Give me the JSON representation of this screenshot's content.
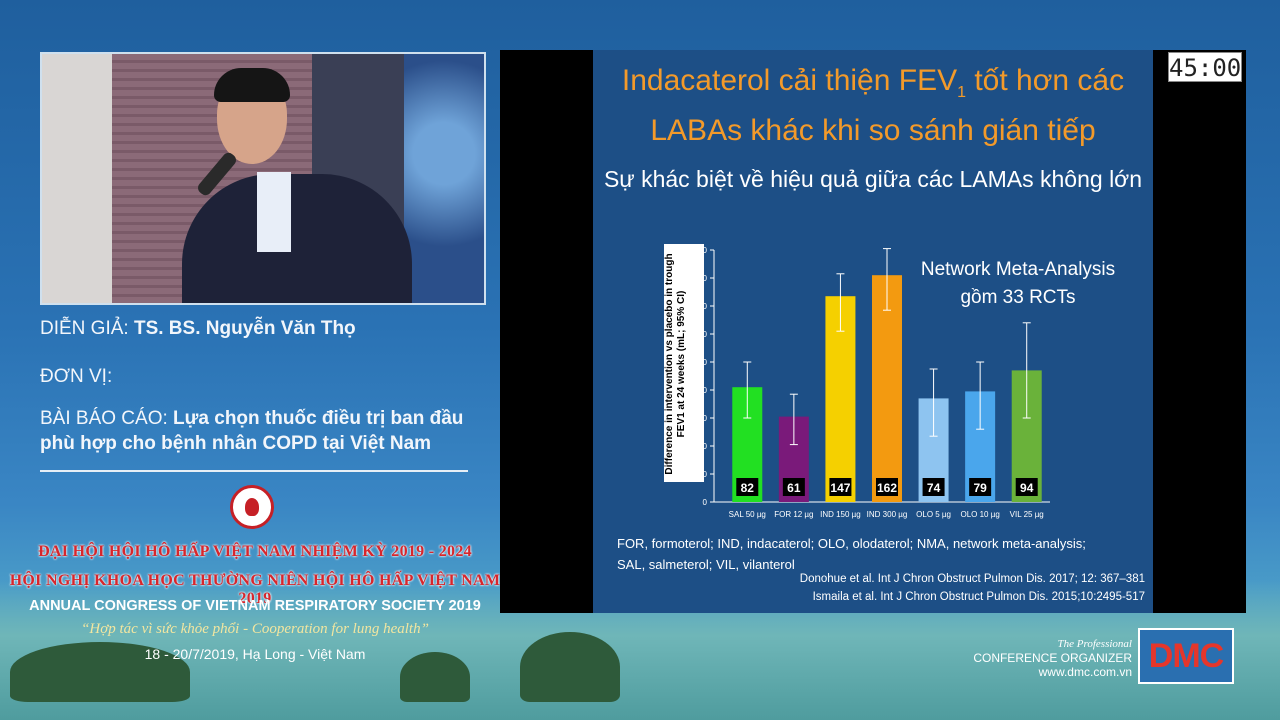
{
  "speaker": {
    "label": "DIỄN GIẢ:",
    "name": "TS. BS. Nguyễn Văn Thọ",
    "unit_label": "ĐƠN VỊ:",
    "talk_label": "BÀI BÁO CÁO:",
    "talk_title_line1": "Lựa chọn thuốc điều trị ban đầu",
    "talk_title_line2": "phù hợp cho bệnh nhân COPD tại Việt Nam"
  },
  "congress": {
    "line1": "ĐẠI HỘI HỘI HÔ HẤP VIỆT NAM NHIỆM KỲ 2019 - 2024",
    "line2": "HỘI NGHỊ KHOA HỌC THƯỜNG NIÊN HỘI HÔ HẤP VIỆT NAM 2019",
    "line3": "ANNUAL CONGRESS OF VIETNAM RESPIRATORY SOCIETY 2019",
    "motto": "“Hợp tác vì sức khỏe phổi - Cooperation for lung health”",
    "date": "18 - 20/7/2019, Hạ Long - Việt Nam"
  },
  "timer": "45:00",
  "slide": {
    "title_line1_pre": "Indacaterol cải thiện FEV",
    "title_sub": "1",
    "title_line1_post": " tốt hơn các",
    "title_line2": "LABAs khác khi so sánh gián tiếp",
    "subtitle": "Sự khác biệt về hiệu quả giữa các LAMAs không lớn",
    "nma_line1": "Network Meta-Analysis",
    "nma_line2": "gồm 33 RCTs",
    "footnote_line1": "FOR, formoterol; IND, indacaterol; OLO, olodaterol; NMA, network meta-analysis;",
    "footnote_line2": "SAL, salmeterol; VIL, vilanterol",
    "ref1": "Donohue et al. Int J Chron Obstruct Pulmon Dis. 2017; 12: 367–381",
    "ref2": "Ismaila et al. Int J Chron Obstruct Pulmon Dis. 2015;10:2495-517"
  },
  "chart_data": {
    "type": "bar",
    "ylabel": "Difference in intervention vs placebo in trough FEV1 at 24 weeks (mL; 95% CI)",
    "ylim": [
      0,
      180
    ],
    "yticks": [
      0,
      20,
      40,
      60,
      80,
      100,
      120,
      140,
      160,
      180
    ],
    "categories": [
      "SAL 50 µg",
      "FOR 12 µg",
      "IND 150 µg",
      "IND 300 µg",
      "OLO 5 µg",
      "OLO 10 µg",
      "VIL 25 µg"
    ],
    "values": [
      82,
      61,
      147,
      162,
      74,
      79,
      94
    ],
    "ci_low": [
      60,
      41,
      122,
      137,
      47,
      52,
      60
    ],
    "ci_high": [
      100,
      77,
      163,
      181,
      95,
      100,
      128
    ],
    "colors": [
      "#22e022",
      "#7a1a7a",
      "#f5d000",
      "#f39a10",
      "#8ec4f0",
      "#4aa6ec",
      "#6ab23a"
    ]
  },
  "organizer": {
    "line1": "The Professional",
    "line2": "CONFERENCE ORGANIZER",
    "line3": "www.dmc.com.vn",
    "badge": "DMC"
  }
}
